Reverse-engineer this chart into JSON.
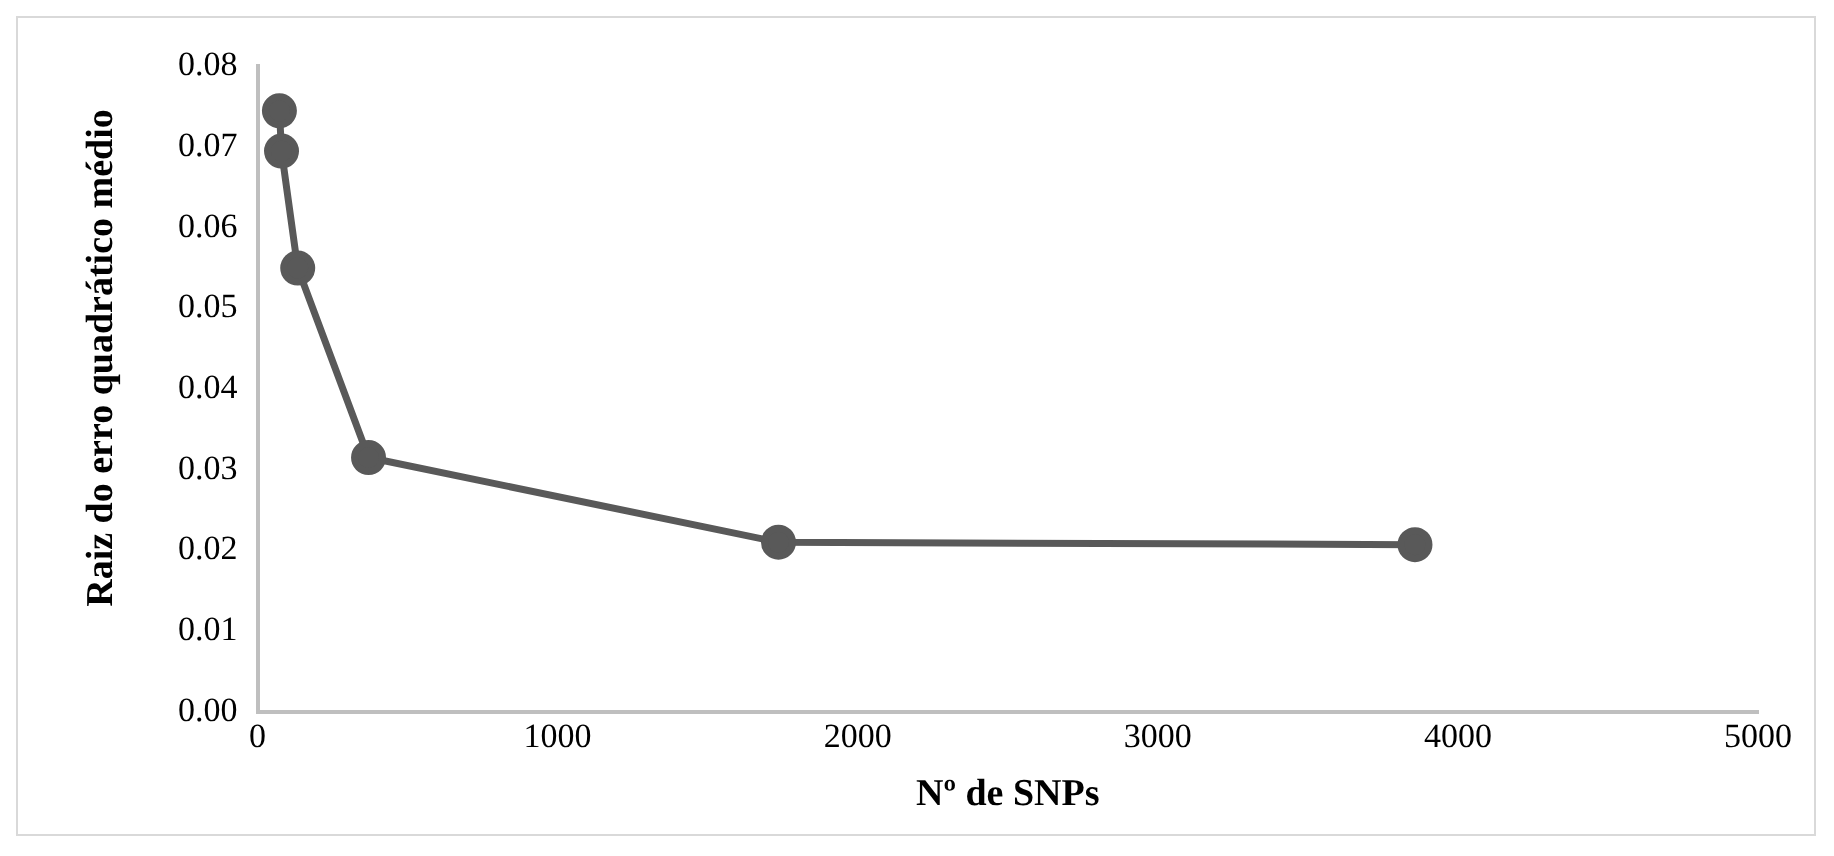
{
  "chart_data": {
    "type": "line",
    "xlabel": "Nº de SNPs",
    "ylabel": "Raiz do erro quadrático médio",
    "x": [
      73,
      80,
      134,
      370,
      1736,
      3857
    ],
    "series": [
      {
        "color": "#595959",
        "values": [
          0.0745,
          0.0695,
          0.055,
          0.0315,
          0.021,
          0.0207
        ]
      }
    ],
    "xlim": [
      0,
      5000
    ],
    "xticks": [
      0,
      1000,
      2000,
      3000,
      4000,
      5000
    ],
    "ylim": [
      0,
      0.08
    ],
    "yticks": [
      {
        "value": 0,
        "label": "0.00"
      },
      {
        "value": 0.01,
        "label": "0.01"
      },
      {
        "value": 0.02,
        "label": "0.02"
      },
      {
        "value": 0.03,
        "label": "0.03"
      },
      {
        "value": 0.04,
        "label": "0.04"
      },
      {
        "value": 0.05,
        "label": "0.05"
      },
      {
        "value": 0.06,
        "label": "0.06"
      },
      {
        "value": 0.07,
        "label": "0.07"
      },
      {
        "value": 0.08,
        "label": "0.08"
      }
    ],
    "grid": false,
    "legend": false,
    "marker": "circle",
    "line_style": "solid"
  }
}
